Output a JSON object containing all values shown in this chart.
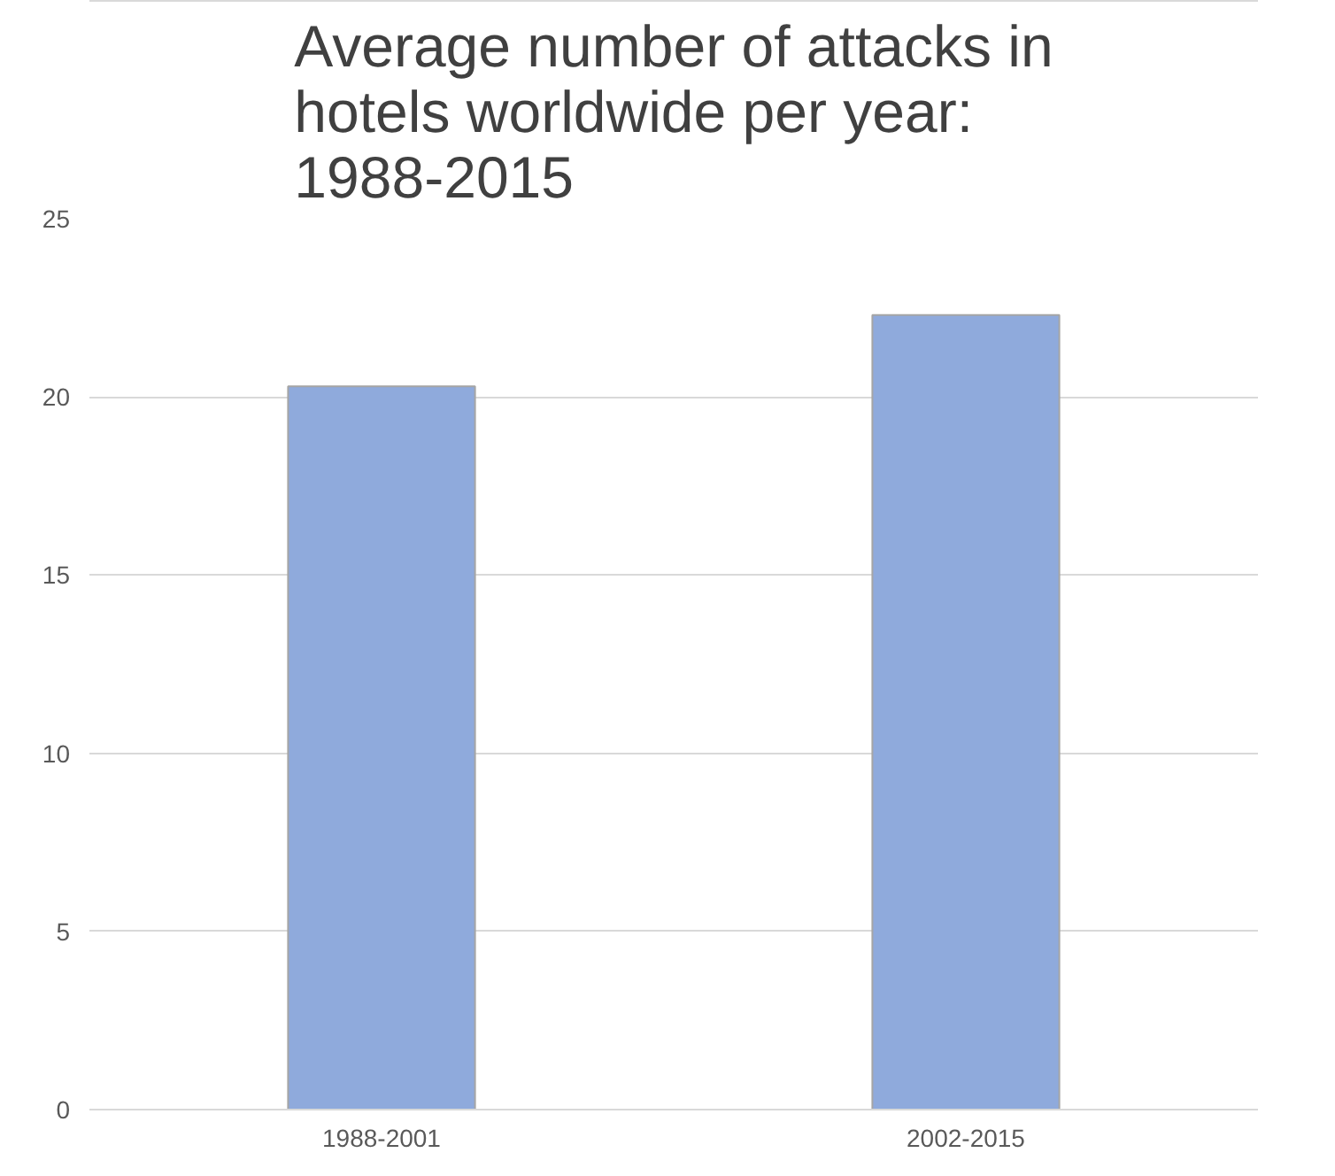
{
  "chart_data": {
    "type": "bar",
    "title": "Average number of attacks in hotels worldwide per year: 1988-2015",
    "categories": [
      "1988-2001",
      "2002-2015"
    ],
    "values": [
      20.3,
      22.3
    ],
    "color": "#8faadc",
    "ylim": [
      0,
      25
    ],
    "yticks": [
      0,
      5,
      10,
      15,
      20,
      25
    ],
    "grid": "y"
  }
}
